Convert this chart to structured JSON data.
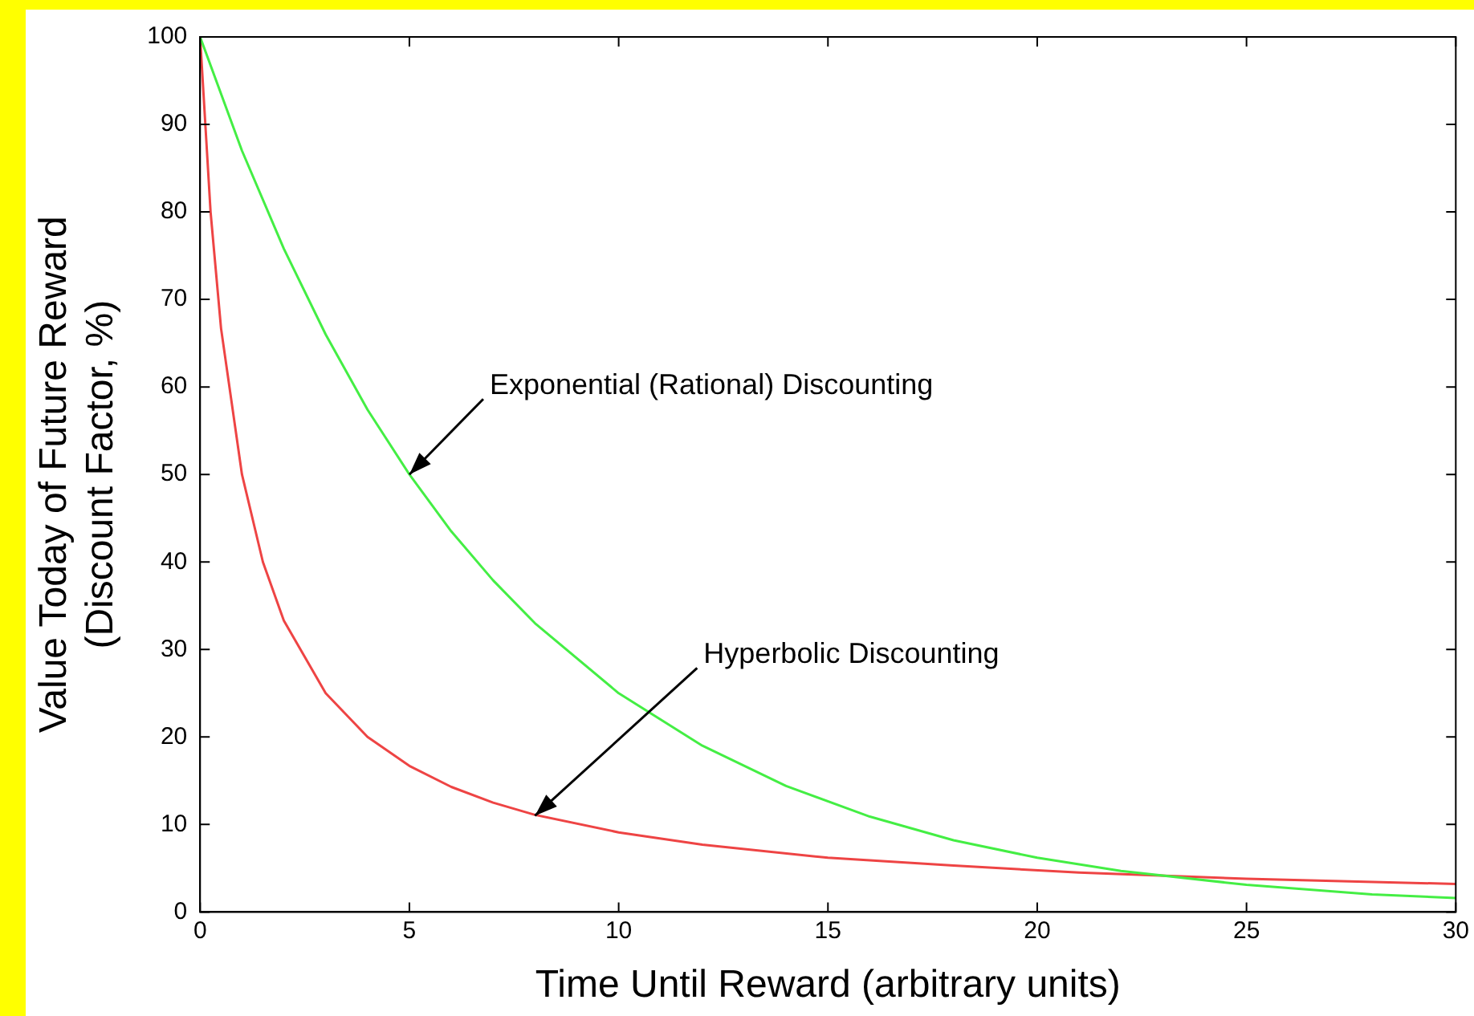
{
  "chart_data": {
    "type": "line",
    "xlabel": "Time Until Reward (arbitrary units)",
    "ylabel": "Value Today of Future Reward\n(Discount Factor, %)",
    "series": [
      {
        "color": "#44ee44",
        "x": [
          0,
          1,
          2,
          3,
          4,
          5,
          6,
          7,
          8,
          10,
          12,
          14,
          16,
          18,
          20,
          22,
          25,
          28,
          30
        ],
        "values": [
          100,
          87,
          75.8,
          66,
          57.4,
          50,
          43.5,
          37.9,
          33,
          25,
          19,
          14.4,
          10.9,
          8.2,
          6.2,
          4.7,
          3.1,
          2,
          1.6
        ]
      },
      {
        "color": "#ee4444",
        "x": [
          0,
          0.25,
          0.5,
          1,
          1.5,
          2,
          3,
          4,
          5,
          6,
          7,
          8,
          10,
          12,
          15,
          18,
          21,
          25,
          30
        ],
        "values": [
          100,
          80,
          66.7,
          50,
          40,
          33.3,
          25,
          20,
          16.7,
          14.3,
          12.5,
          11.1,
          9.1,
          7.7,
          6.2,
          5.3,
          4.5,
          3.8,
          3.2
        ]
      }
    ],
    "annotations": [
      {
        "text": "Exponential (Rational) Discounting",
        "x": 5,
        "y": 50
      },
      {
        "text": "Hyperbolic Discounting",
        "x": 8,
        "y": 11
      }
    ],
    "xlim": [
      0,
      30
    ],
    "xticks": [
      0,
      5,
      10,
      15,
      20,
      25,
      30
    ],
    "ylim": [
      0,
      100
    ],
    "yticks": [
      0,
      10,
      20,
      30,
      40,
      50,
      60,
      70,
      80,
      90,
      100
    ],
    "grid": false,
    "legend": false,
    "marker": "none",
    "line_style": "solid"
  }
}
